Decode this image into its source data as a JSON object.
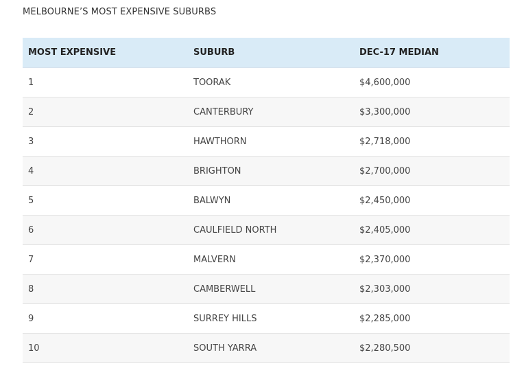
{
  "title": "MELBOURNE’S MOST EXPENSIVE SUBURBS",
  "table": {
    "headers": [
      "MOST EXPENSIVE",
      "SUBURB",
      "DEC-17 MEDIAN"
    ],
    "rows": [
      [
        "1",
        "TOORAK",
        "$4,600,000"
      ],
      [
        "2",
        "CANTERBURY",
        "$3,300,000"
      ],
      [
        "3",
        "HAWTHORN",
        "$2,718,000"
      ],
      [
        "4",
        "BRIGHTON",
        "$2,700,000"
      ],
      [
        "5",
        "BALWYN",
        "$2,450,000"
      ],
      [
        "6",
        "CAULFIELD NORTH",
        "$2,405,000"
      ],
      [
        "7",
        "MALVERN",
        "$2,370,000"
      ],
      [
        "8",
        "CAMBERWELL",
        "$2,303,000"
      ],
      [
        "9",
        "SURREY HILLS",
        "$2,285,000"
      ],
      [
        "10",
        "SOUTH YARRA",
        "$2,280,500"
      ]
    ]
  }
}
